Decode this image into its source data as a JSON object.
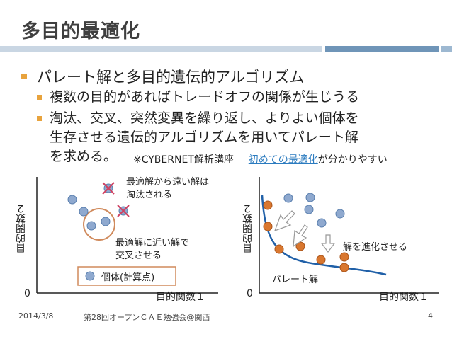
{
  "slide": {
    "title": "多目的最適化",
    "bullet1": "パレート解と多目的遺伝的アルゴリズム",
    "sub1": "複数の目的があればトレードオフの関係が生じうる",
    "sub2_line1": "淘汰、交叉、突然変異を繰り返し、よりよい個体を",
    "sub2_line2": "生存させる遺伝的アルゴリズムを用いてパレート解",
    "sub2_line3": "を求める。",
    "note_prefix": "※CYBERNET解析講座",
    "note_link": "初めての最適化",
    "note_suffix": "が分かりやすい"
  },
  "left_chart": {
    "ylabel": "目的関数２",
    "xlabel": "目的関数１",
    "origin": "0",
    "annot_far_1": "最適解から遠い解は",
    "annot_far_2": "淘汰される",
    "annot_near_1": "最適解に近い解で",
    "annot_near_2": "交叉させる",
    "legend": "個体(計算点)"
  },
  "right_chart": {
    "ylabel": "目的関数２",
    "xlabel": "目的関数１",
    "origin": "0",
    "evolve": "解を進化させる",
    "pareto": "パレート解"
  },
  "footer": {
    "date": "2014/3/8",
    "event": "第28回オープンＣＡＥ勉強会@関西",
    "page": "4"
  },
  "colors": {
    "blue_point": "#8fa9cf",
    "orange_point": "#d9772f",
    "circle": "#d08a5c",
    "pareto_line": "#2060a8",
    "accent": "#e8a33d"
  }
}
